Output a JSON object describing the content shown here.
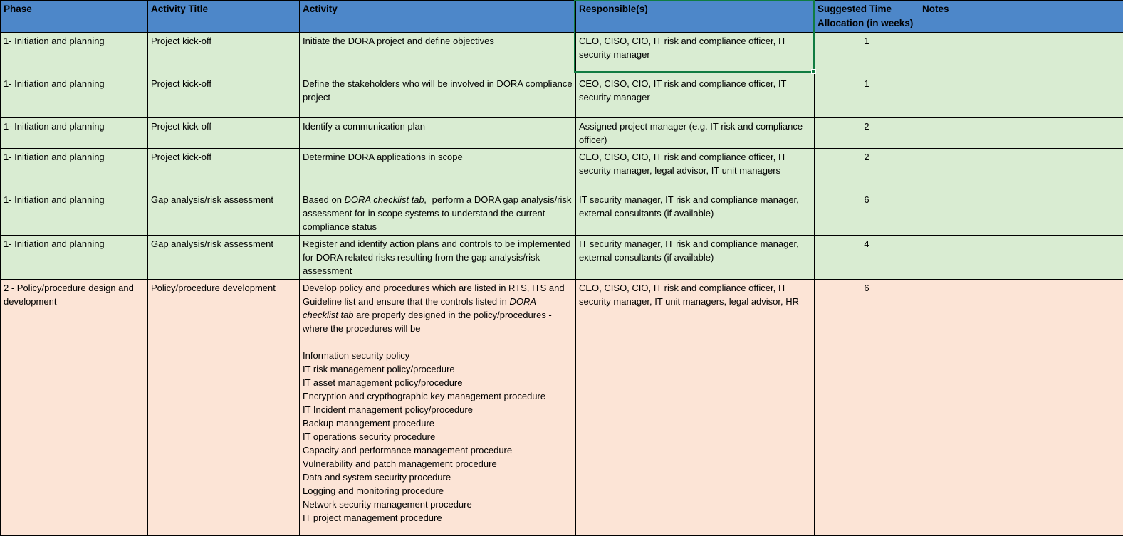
{
  "colors": {
    "header_bg": "#4d87c9",
    "header_text": "#000000",
    "green_row_bg": "#d9ecd2",
    "pink_row_bg": "#fce4d6",
    "grid_border": "#000000",
    "selection_green": "#107c41"
  },
  "table": {
    "headers": [
      "Phase",
      "Activity Title",
      "Activity",
      "Responsible(s)",
      "Suggested Time\nAllocation (in weeks)",
      "Notes"
    ],
    "rows": [
      {
        "tone": "green",
        "phase": "1- Initiation and planning",
        "activity_title": "Project kick-off",
        "activity": [
          {
            "t": "Initiate the DORA project and define objectives"
          }
        ],
        "responsibles": "CEO, CISO, CIO, IT risk and compliance officer, IT security manager",
        "weeks": "1",
        "notes": ""
      },
      {
        "tone": "green",
        "phase": "1- Initiation and planning",
        "activity_title": "Project kick-off",
        "activity": [
          {
            "t": "Define the stakeholders who will be involved in DORA compliance project"
          }
        ],
        "responsibles": "CEO, CISO, CIO, IT risk and compliance officer, IT security manager",
        "weeks": "1",
        "notes": ""
      },
      {
        "tone": "green",
        "phase": "1- Initiation and planning",
        "activity_title": "Project kick-off",
        "activity": [
          {
            "t": "Identify a communication plan"
          }
        ],
        "responsibles": "Assigned project manager (e.g. IT risk and compliance officer)",
        "weeks": "2",
        "notes": ""
      },
      {
        "tone": "green",
        "phase": "1- Initiation and planning",
        "activity_title": "Project kick-off",
        "activity": [
          {
            "t": "Determine DORA applications in scope"
          }
        ],
        "responsibles": "CEO, CISO, CIO, IT risk and compliance officer, IT security manager, legal advisor, IT unit managers",
        "weeks": "2",
        "notes": ""
      },
      {
        "tone": "green",
        "phase": "1- Initiation and planning",
        "activity_title": "Gap analysis/risk assessment",
        "activity": [
          {
            "t": "Based on "
          },
          {
            "t": "DORA checklist tab,",
            "i": true
          },
          {
            "t": "  perform a DORA gap analysis/risk assessment for in scope systems to understand the current compliance status"
          }
        ],
        "responsibles": "IT security manager, IT risk and compliance manager, external consultants (if available)",
        "weeks": "6",
        "notes": ""
      },
      {
        "tone": "green",
        "phase": "1- Initiation and planning",
        "activity_title": "Gap analysis/risk assessment",
        "activity": [
          {
            "t": "Register and identify action plans and controls to be implemented for DORA related risks resulting from the gap analysis/risk assessment"
          }
        ],
        "responsibles": "IT security manager, IT risk and compliance manager, external consultants (if available)",
        "weeks": "4",
        "notes": ""
      },
      {
        "tone": "pink",
        "phase": "2 - Policy/procedure design and development",
        "activity_title": "Policy/procedure development",
        "activity": [
          {
            "t": "Develop policy and procedures which are listed in RTS, ITS and Guideline list and ensure that the controls listed in "
          },
          {
            "t": "DORA checklist tab",
            "i": true
          },
          {
            "t": " are properly designed in the policy/procedures - where the procedures will be\n\nInformation security policy\nIT risk management policy/procedure\nIT asset management policy/procedure\nEncryption and crypthographic key management procedure\nIT Incident management policy/procedure\nBackup management procedure\nIT operations security procedure\nCapacity and performance management procedure\nVulnerability and patch management procedure\nData and system security procedure\nLogging and monitoring procedure\nNetwork security management procedure\nIT project management procedure"
          }
        ],
        "responsibles": "CEO, CISO, CIO, IT risk and compliance officer, IT security manager, IT unit managers, legal advisor, HR",
        "weeks": "6",
        "notes": ""
      }
    ]
  }
}
